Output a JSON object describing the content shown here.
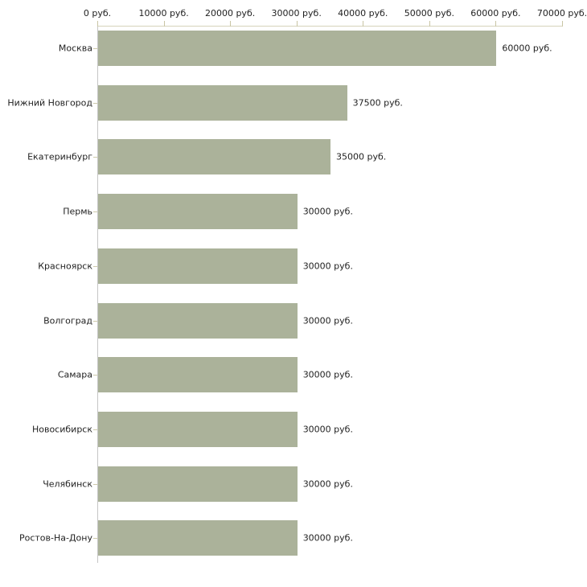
{
  "chart_data": {
    "type": "bar",
    "orientation": "horizontal",
    "title": "",
    "xlabel": "",
    "ylabel": "",
    "legend": false,
    "grid": false,
    "unit_suffix": " руб.",
    "categories": [
      "Москва",
      "Нижний Новгород",
      "Екатеринбург",
      "Пермь",
      "Красноярск",
      "Волгоград",
      "Самара",
      "Новосибирск",
      "Челябинск",
      "Ростов-На-Дону"
    ],
    "values": [
      60000,
      37500,
      35000,
      30000,
      30000,
      30000,
      30000,
      30000,
      30000,
      30000
    ],
    "value_labels": [
      "60000 руб.",
      "37500 руб.",
      "35000 руб.",
      "30000 руб.",
      "30000 руб.",
      "30000 руб.",
      "30000 руб.",
      "30000 руб.",
      "30000 руб.",
      "30000 руб."
    ],
    "x_axis": {
      "range": [
        0,
        70000
      ],
      "tick_values": [
        0,
        10000,
        20000,
        30000,
        40000,
        50000,
        60000,
        70000
      ],
      "tick_labels": [
        "0 руб.",
        "10000 руб.",
        "20000 руб.",
        "30000 руб.",
        "40000 руб.",
        "50000 руб.",
        "60000 руб.",
        "70000 руб."
      ],
      "position": "top"
    },
    "colors": {
      "bar": "#abb29a",
      "x_axis_line": "#d6d3bb",
      "x_tick": "#c9c5a4",
      "y_axis_line": "#c6c6c6",
      "category_tick": "#cdc9ab",
      "text": "#1f1f1f",
      "background": "#ffffff"
    }
  }
}
